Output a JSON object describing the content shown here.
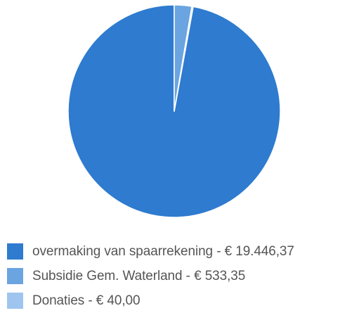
{
  "chart_data": {
    "type": "pie",
    "title": "",
    "currency_unit": "€",
    "categories": [
      "overmaking van spaarrekening",
      "Subsidie Gem. Waterland",
      "Donaties"
    ],
    "values": [
      19446.37,
      533.35,
      40.0
    ],
    "colors": [
      "#2e7bcf",
      "#6aa4e1",
      "#9fc5ee"
    ],
    "legend_position": "bottom",
    "slice_border_color": "#ffffff",
    "legend": [
      {
        "label": "overmaking van spaarrekening - € 19.446,37",
        "color": "#2e7bcf"
      },
      {
        "label": "Subsidie Gem. Waterland - € 533,35",
        "color": "#6aa4e1"
      },
      {
        "label": "Donaties - € 40,00",
        "color": "#9fc5ee"
      }
    ]
  }
}
